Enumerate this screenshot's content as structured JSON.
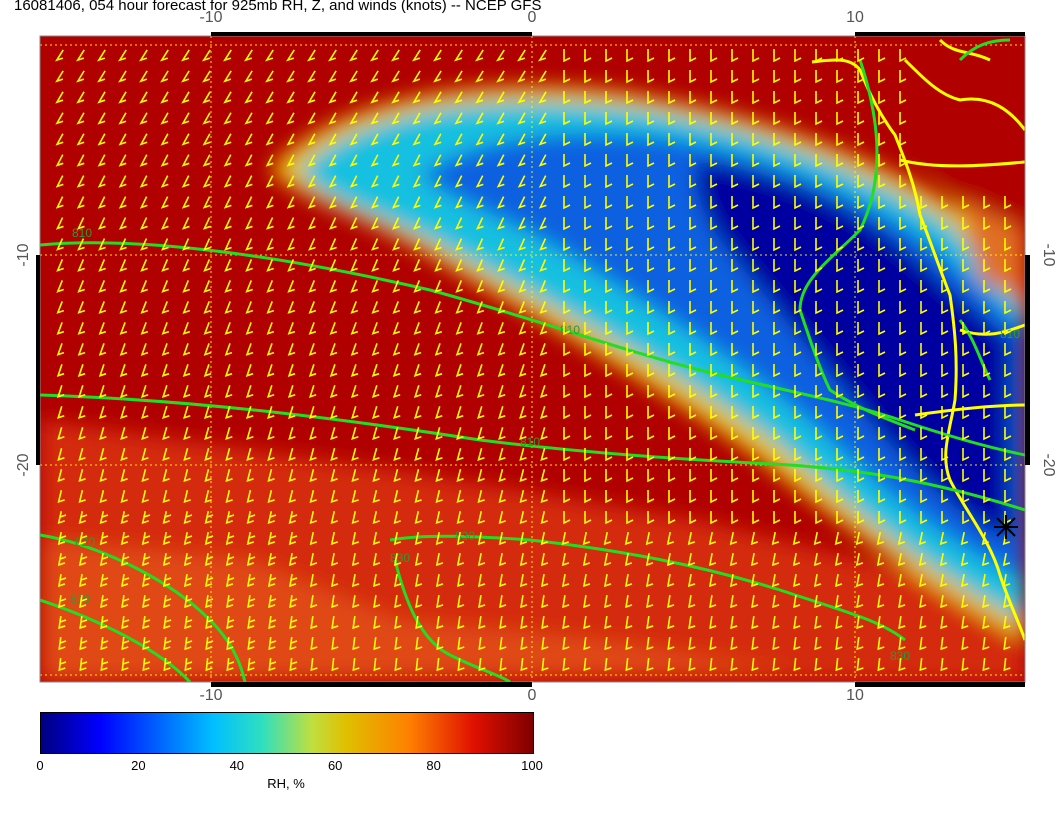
{
  "title": "16081406, 054 hour forecast for 925mb RH, Z, and winds (knots) -- NCEP GFS",
  "map": {
    "x_ticks": [
      "-10",
      "0",
      "10"
    ],
    "y_ticks": [
      "-10",
      "-20"
    ],
    "contour_labels": [
      "810",
      "810",
      "810",
      "820",
      "830",
      "830",
      "830",
      "830",
      "810"
    ],
    "contour_color": "#22dd22",
    "coastline_color": "#ffff00",
    "marker": "station-star"
  },
  "colorbar": {
    "title": "RH, %",
    "tick_labels": [
      "0",
      "20",
      "40",
      "60",
      "80",
      "100"
    ],
    "colors": [
      "#00007f",
      "#0000ff",
      "#00bfff",
      "#7fff7f",
      "#cccc00",
      "#ff7f00",
      "#ff0000",
      "#7f0000"
    ]
  }
}
